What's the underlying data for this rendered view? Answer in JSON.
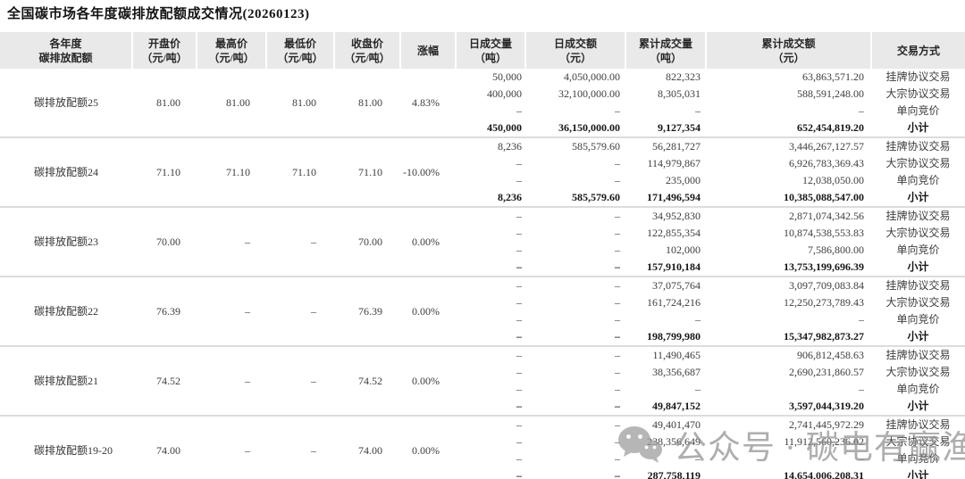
{
  "title": "全国碳市场各年度碳排放配额成交情况(20260123)",
  "table": {
    "columns": [
      {
        "key": "name",
        "l1": "各年度",
        "l2": "碳排放配额"
      },
      {
        "key": "open",
        "l1": "开盘价",
        "l2": "（元/吨）"
      },
      {
        "key": "high",
        "l1": "最高价",
        "l2": "（元/吨）"
      },
      {
        "key": "low",
        "l1": "最低价",
        "l2": "（元/吨）"
      },
      {
        "key": "close",
        "l1": "收盘价",
        "l2": "（元/吨）"
      },
      {
        "key": "chg",
        "l1": "涨幅",
        "l2": ""
      },
      {
        "key": "dvol",
        "l1": "日成交量",
        "l2": "（吨）"
      },
      {
        "key": "damt",
        "l1": "日成交额",
        "l2": "（元）"
      },
      {
        "key": "cvol",
        "l1": "累计成交量",
        "l2": "（吨）"
      },
      {
        "key": "camt",
        "l1": "累计成交额",
        "l2": "（元）"
      },
      {
        "key": "method",
        "l1": "交易方式",
        "l2": ""
      }
    ],
    "blocks": [
      {
        "name": "碳排放配额25",
        "open": "81.00",
        "high": "81.00",
        "low": "81.00",
        "close": "81.00",
        "change": "4.83%",
        "rows": [
          {
            "method": "挂牌协议交易",
            "daily_volume": "50,000",
            "daily_amount": "4,050,000.00",
            "cum_volume": "822,323",
            "cum_amount": "63,863,571.20"
          },
          {
            "method": "大宗协议交易",
            "daily_volume": "400,000",
            "daily_amount": "32,100,000.00",
            "cum_volume": "8,305,031",
            "cum_amount": "588,591,248.00"
          },
          {
            "method": "单向竞价",
            "daily_volume": "–",
            "daily_amount": "–",
            "cum_volume": "–",
            "cum_amount": "–"
          },
          {
            "method": "小计",
            "daily_volume": "450,000",
            "daily_amount": "36,150,000.00",
            "cum_volume": "9,127,354",
            "cum_amount": "652,454,819.20"
          }
        ]
      },
      {
        "name": "碳排放配额24",
        "open": "71.10",
        "high": "71.10",
        "low": "71.10",
        "close": "71.10",
        "change": "-10.00%",
        "rows": [
          {
            "method": "挂牌协议交易",
            "daily_volume": "8,236",
            "daily_amount": "585,579.60",
            "cum_volume": "56,281,727",
            "cum_amount": "3,446,267,127.57"
          },
          {
            "method": "大宗协议交易",
            "daily_volume": "–",
            "daily_amount": "–",
            "cum_volume": "114,979,867",
            "cum_amount": "6,926,783,369.43"
          },
          {
            "method": "单向竞价",
            "daily_volume": "–",
            "daily_amount": "–",
            "cum_volume": "235,000",
            "cum_amount": "12,038,050.00"
          },
          {
            "method": "小计",
            "daily_volume": "8,236",
            "daily_amount": "585,579.60",
            "cum_volume": "171,496,594",
            "cum_amount": "10,385,088,547.00"
          }
        ]
      },
      {
        "name": "碳排放配额23",
        "open": "70.00",
        "high": "–",
        "low": "–",
        "close": "70.00",
        "change": "0.00%",
        "rows": [
          {
            "method": "挂牌协议交易",
            "daily_volume": "–",
            "daily_amount": "–",
            "cum_volume": "34,952,830",
            "cum_amount": "2,871,074,342.56"
          },
          {
            "method": "大宗协议交易",
            "daily_volume": "–",
            "daily_amount": "–",
            "cum_volume": "122,855,354",
            "cum_amount": "10,874,538,553.83"
          },
          {
            "method": "单向竞价",
            "daily_volume": "–",
            "daily_amount": "–",
            "cum_volume": "102,000",
            "cum_amount": "7,586,800.00"
          },
          {
            "method": "小计",
            "daily_volume": "–",
            "daily_amount": "–",
            "cum_volume": "157,910,184",
            "cum_amount": "13,753,199,696.39"
          }
        ]
      },
      {
        "name": "碳排放配额22",
        "open": "76.39",
        "high": "–",
        "low": "–",
        "close": "76.39",
        "change": "0.00%",
        "rows": [
          {
            "method": "挂牌协议交易",
            "daily_volume": "–",
            "daily_amount": "–",
            "cum_volume": "37,075,764",
            "cum_amount": "3,097,709,083.84"
          },
          {
            "method": "大宗协议交易",
            "daily_volume": "–",
            "daily_amount": "–",
            "cum_volume": "161,724,216",
            "cum_amount": "12,250,273,789.43"
          },
          {
            "method": "单向竞价",
            "daily_volume": "–",
            "daily_amount": "–",
            "cum_volume": "–",
            "cum_amount": "–"
          },
          {
            "method": "小计",
            "daily_volume": "–",
            "daily_amount": "–",
            "cum_volume": "198,799,980",
            "cum_amount": "15,347,982,873.27"
          }
        ]
      },
      {
        "name": "碳排放配额21",
        "open": "74.52",
        "high": "–",
        "low": "–",
        "close": "74.52",
        "change": "0.00%",
        "rows": [
          {
            "method": "挂牌协议交易",
            "daily_volume": "–",
            "daily_amount": "–",
            "cum_volume": "11,490,465",
            "cum_amount": "906,812,458.63"
          },
          {
            "method": "大宗协议交易",
            "daily_volume": "–",
            "daily_amount": "–",
            "cum_volume": "38,356,687",
            "cum_amount": "2,690,231,860.57"
          },
          {
            "method": "单向竞价",
            "daily_volume": "–",
            "daily_amount": "–",
            "cum_volume": "–",
            "cum_amount": "–"
          },
          {
            "method": "小计",
            "daily_volume": "–",
            "daily_amount": "–",
            "cum_volume": "49,847,152",
            "cum_amount": "3,597,044,319.20"
          }
        ]
      },
      {
        "name": "碳排放配额19-20",
        "open": "74.00",
        "high": "–",
        "low": "–",
        "close": "74.00",
        "change": "0.00%",
        "rows": [
          {
            "method": "挂牌协议交易",
            "daily_volume": "–",
            "daily_amount": "–",
            "cum_volume": "49,401,470",
            "cum_amount": "2,741,445,972.29"
          },
          {
            "method": "大宗协议交易",
            "daily_volume": "–",
            "daily_amount": "–",
            "cum_volume": "238,356,649",
            "cum_amount": "11,912,560,236.02"
          },
          {
            "method": "单向竞价",
            "daily_volume": "–",
            "daily_amount": "–",
            "cum_volume": "–",
            "cum_amount": "–"
          },
          {
            "method": "小计",
            "daily_volume": "–",
            "daily_amount": "–",
            "cum_volume": "287,758,119",
            "cum_amount": "14,654,006,208.31"
          }
        ]
      }
    ]
  },
  "watermark": {
    "icon": "wechat-icon",
    "label": "公众号 · 碳电有赢渔",
    "color": "#8f8f8f"
  }
}
